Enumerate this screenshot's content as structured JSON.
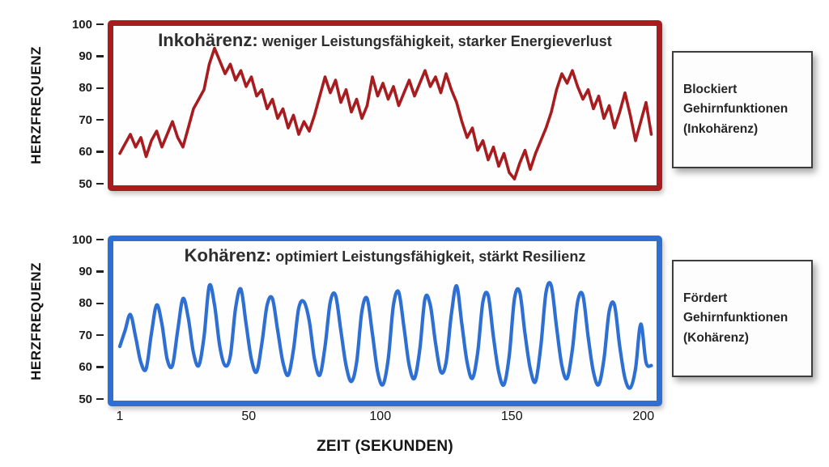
{
  "y_axis": {
    "label": "HERZFREQUENZ",
    "ticks": [
      100,
      90,
      80,
      70,
      60,
      50
    ]
  },
  "x_axis": {
    "label": "ZEIT (SEKUNDEN)",
    "ticks": [
      1,
      50,
      100,
      150,
      200
    ]
  },
  "charts": [
    {
      "title_emphasis": "Inkohärenz:",
      "title_rest": " weniger Leistungsfähigkeit, starker Energieverlust",
      "accent_color": "#A81C20"
    },
    {
      "title_emphasis": "Kohärenz:",
      "title_rest": " optimiert Leistungsfähigkeit, stärkt Resilienz",
      "accent_color": "#2D6FD2"
    }
  ],
  "side_panels": [
    {
      "lines": [
        "Blockiert",
        "Gehirnfunktionen",
        "(Inkohärenz)"
      ]
    },
    {
      "lines": [
        "Fördert",
        "Gehirnfunktionen",
        "(Kohärenz)"
      ]
    }
  ],
  "chart_data": [
    {
      "type": "line",
      "title": "Inkohärenz: weniger Leistungsfähigkeit, starker Energieverlust",
      "xlabel": "ZEIT (SEKUNDEN)",
      "ylabel": "HERZFREQUENZ",
      "xlim": [
        1,
        205
      ],
      "ylim": [
        50,
        100
      ],
      "x_ticks": [
        1,
        50,
        100,
        150,
        200
      ],
      "y_ticks": [
        100,
        90,
        80,
        70,
        60,
        50
      ],
      "legend": null,
      "grid": false,
      "line_color": "#A81C20",
      "smooth": false,
      "x_start": 1,
      "x_step": 2,
      "values": [
        60,
        63,
        66,
        62,
        65,
        59,
        64,
        67,
        62,
        66,
        70,
        65,
        62,
        68,
        74,
        77,
        80,
        88,
        93,
        89,
        85,
        88,
        83,
        86,
        81,
        84,
        78,
        80,
        74,
        77,
        71,
        74,
        68,
        72,
        66,
        70,
        67,
        72,
        78,
        84,
        79,
        83,
        76,
        80,
        73,
        77,
        71,
        75,
        84,
        78,
        82,
        77,
        81,
        75,
        79,
        83,
        78,
        82,
        86,
        81,
        84,
        79,
        85,
        80,
        76,
        70,
        65,
        68,
        61,
        64,
        58,
        62,
        56,
        60,
        54,
        52,
        57,
        61,
        55,
        60,
        64,
        68,
        73,
        80,
        85,
        82,
        86,
        81,
        77,
        80,
        74,
        78,
        71,
        75,
        68,
        73,
        79,
        72,
        64,
        70,
        76,
        66
      ]
    },
    {
      "type": "line",
      "title": "Kohärenz: optimiert Leistungsfähigkeit, stärkt Resilienz",
      "xlabel": "ZEIT (SEKUNDEN)",
      "ylabel": "HERZFREQUENZ",
      "xlim": [
        1,
        205
      ],
      "ylim": [
        50,
        100
      ],
      "x_ticks": [
        1,
        50,
        100,
        150,
        200
      ],
      "y_ticks": [
        100,
        90,
        80,
        70,
        60,
        50
      ],
      "legend": null,
      "grid": false,
      "line_color": "#2D6FD2",
      "smooth": true,
      "x_start": 1,
      "x_step": 2,
      "values": [
        67,
        72,
        77,
        70,
        62,
        60,
        71,
        80,
        74,
        63,
        61,
        72,
        82,
        76,
        65,
        61,
        70,
        86,
        80,
        67,
        61,
        64,
        79,
        85,
        74,
        63,
        59,
        68,
        80,
        82,
        72,
        62,
        58,
        66,
        79,
        81,
        75,
        63,
        58,
        67,
        81,
        83,
        72,
        61,
        56,
        62,
        78,
        82,
        71,
        59,
        55,
        63,
        80,
        84,
        73,
        61,
        57,
        66,
        82,
        80,
        68,
        59,
        62,
        77,
        86,
        74,
        62,
        57,
        65,
        81,
        83,
        70,
        59,
        55,
        64,
        82,
        84,
        71,
        60,
        56,
        67,
        84,
        86,
        73,
        61,
        57,
        66,
        81,
        83,
        70,
        59,
        55,
        63,
        78,
        80,
        67,
        57,
        54,
        60,
        74,
        62,
        61
      ]
    }
  ]
}
